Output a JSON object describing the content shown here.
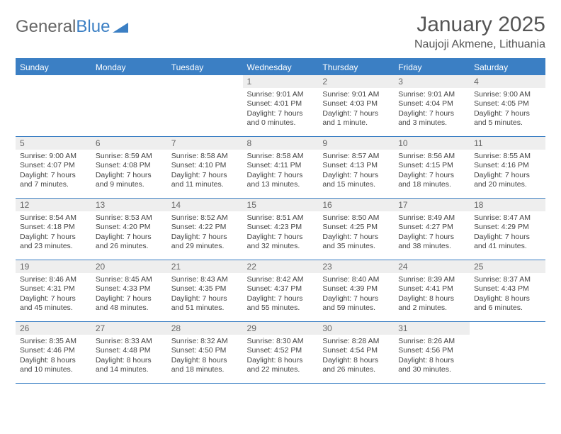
{
  "brand": {
    "part1": "General",
    "part2": "Blue"
  },
  "title": "January 2025",
  "location": "Naujoji Akmene, Lithuania",
  "colors": {
    "accent": "#3b7fc4",
    "header_bg": "#3b7fc4",
    "header_text": "#ffffff",
    "daynum_bg": "#eeeeee",
    "border": "#3b7fc4",
    "text": "#444444"
  },
  "day_headers": [
    "Sunday",
    "Monday",
    "Tuesday",
    "Wednesday",
    "Thursday",
    "Friday",
    "Saturday"
  ],
  "weeks": [
    [
      null,
      null,
      null,
      {
        "n": "1",
        "sunrise": "9:01 AM",
        "sunset": "4:01 PM",
        "daylight": "7 hours and 0 minutes."
      },
      {
        "n": "2",
        "sunrise": "9:01 AM",
        "sunset": "4:03 PM",
        "daylight": "7 hours and 1 minute."
      },
      {
        "n": "3",
        "sunrise": "9:01 AM",
        "sunset": "4:04 PM",
        "daylight": "7 hours and 3 minutes."
      },
      {
        "n": "4",
        "sunrise": "9:00 AM",
        "sunset": "4:05 PM",
        "daylight": "7 hours and 5 minutes."
      }
    ],
    [
      {
        "n": "5",
        "sunrise": "9:00 AM",
        "sunset": "4:07 PM",
        "daylight": "7 hours and 7 minutes."
      },
      {
        "n": "6",
        "sunrise": "8:59 AM",
        "sunset": "4:08 PM",
        "daylight": "7 hours and 9 minutes."
      },
      {
        "n": "7",
        "sunrise": "8:58 AM",
        "sunset": "4:10 PM",
        "daylight": "7 hours and 11 minutes."
      },
      {
        "n": "8",
        "sunrise": "8:58 AM",
        "sunset": "4:11 PM",
        "daylight": "7 hours and 13 minutes."
      },
      {
        "n": "9",
        "sunrise": "8:57 AM",
        "sunset": "4:13 PM",
        "daylight": "7 hours and 15 minutes."
      },
      {
        "n": "10",
        "sunrise": "8:56 AM",
        "sunset": "4:15 PM",
        "daylight": "7 hours and 18 minutes."
      },
      {
        "n": "11",
        "sunrise": "8:55 AM",
        "sunset": "4:16 PM",
        "daylight": "7 hours and 20 minutes."
      }
    ],
    [
      {
        "n": "12",
        "sunrise": "8:54 AM",
        "sunset": "4:18 PM",
        "daylight": "7 hours and 23 minutes."
      },
      {
        "n": "13",
        "sunrise": "8:53 AM",
        "sunset": "4:20 PM",
        "daylight": "7 hours and 26 minutes."
      },
      {
        "n": "14",
        "sunrise": "8:52 AM",
        "sunset": "4:22 PM",
        "daylight": "7 hours and 29 minutes."
      },
      {
        "n": "15",
        "sunrise": "8:51 AM",
        "sunset": "4:23 PM",
        "daylight": "7 hours and 32 minutes."
      },
      {
        "n": "16",
        "sunrise": "8:50 AM",
        "sunset": "4:25 PM",
        "daylight": "7 hours and 35 minutes."
      },
      {
        "n": "17",
        "sunrise": "8:49 AM",
        "sunset": "4:27 PM",
        "daylight": "7 hours and 38 minutes."
      },
      {
        "n": "18",
        "sunrise": "8:47 AM",
        "sunset": "4:29 PM",
        "daylight": "7 hours and 41 minutes."
      }
    ],
    [
      {
        "n": "19",
        "sunrise": "8:46 AM",
        "sunset": "4:31 PM",
        "daylight": "7 hours and 45 minutes."
      },
      {
        "n": "20",
        "sunrise": "8:45 AM",
        "sunset": "4:33 PM",
        "daylight": "7 hours and 48 minutes."
      },
      {
        "n": "21",
        "sunrise": "8:43 AM",
        "sunset": "4:35 PM",
        "daylight": "7 hours and 51 minutes."
      },
      {
        "n": "22",
        "sunrise": "8:42 AM",
        "sunset": "4:37 PM",
        "daylight": "7 hours and 55 minutes."
      },
      {
        "n": "23",
        "sunrise": "8:40 AM",
        "sunset": "4:39 PM",
        "daylight": "7 hours and 59 minutes."
      },
      {
        "n": "24",
        "sunrise": "8:39 AM",
        "sunset": "4:41 PM",
        "daylight": "8 hours and 2 minutes."
      },
      {
        "n": "25",
        "sunrise": "8:37 AM",
        "sunset": "4:43 PM",
        "daylight": "8 hours and 6 minutes."
      }
    ],
    [
      {
        "n": "26",
        "sunrise": "8:35 AM",
        "sunset": "4:46 PM",
        "daylight": "8 hours and 10 minutes."
      },
      {
        "n": "27",
        "sunrise": "8:33 AM",
        "sunset": "4:48 PM",
        "daylight": "8 hours and 14 minutes."
      },
      {
        "n": "28",
        "sunrise": "8:32 AM",
        "sunset": "4:50 PM",
        "daylight": "8 hours and 18 minutes."
      },
      {
        "n": "29",
        "sunrise": "8:30 AM",
        "sunset": "4:52 PM",
        "daylight": "8 hours and 22 minutes."
      },
      {
        "n": "30",
        "sunrise": "8:28 AM",
        "sunset": "4:54 PM",
        "daylight": "8 hours and 26 minutes."
      },
      {
        "n": "31",
        "sunrise": "8:26 AM",
        "sunset": "4:56 PM",
        "daylight": "8 hours and 30 minutes."
      },
      null
    ]
  ],
  "labels": {
    "sunrise": "Sunrise:",
    "sunset": "Sunset:",
    "daylight": "Daylight:"
  }
}
